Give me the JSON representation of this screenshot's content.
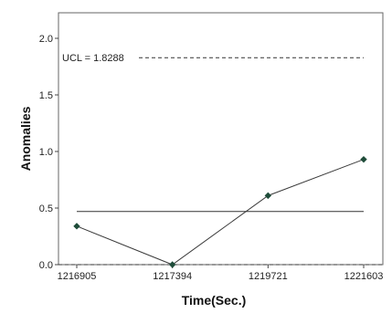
{
  "chart_data": {
    "type": "line",
    "title": "",
    "xlabel": "Time(Sec.)",
    "ylabel": "Anomalies",
    "categories": [
      "1216905",
      "1217394",
      "1219721",
      "1221603"
    ],
    "series": [
      {
        "values": [
          0.34,
          0.0,
          0.61,
          0.93
        ],
        "color": "#3a3a3a",
        "marker_color": "#1f4d3a"
      }
    ],
    "ylim": [
      0.0,
      2.1
    ],
    "yticks": [
      "0.0",
      "0.5",
      "1.0",
      "1.5",
      "2.0"
    ],
    "reference_lines": [
      {
        "label": "UCL = 1.8288",
        "value": 1.8288,
        "style": "dashed"
      },
      {
        "label": "",
        "value": 0.47,
        "style": "solid"
      },
      {
        "label": "",
        "value": 0.0,
        "style": "dashed"
      }
    ],
    "grid": false,
    "legend": "none"
  }
}
